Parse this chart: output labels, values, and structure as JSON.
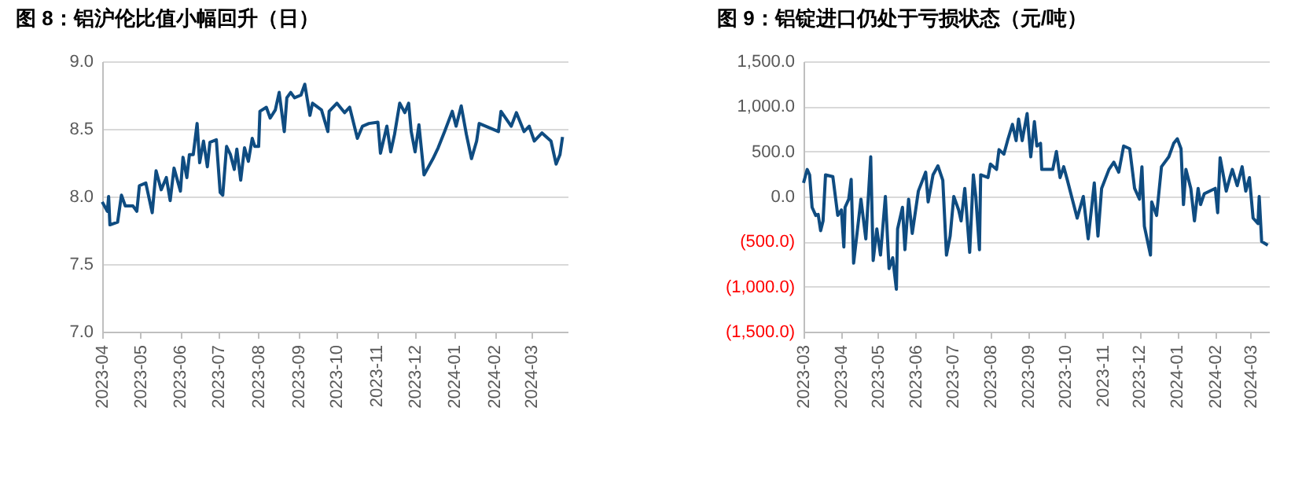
{
  "chart_data": [
    {
      "type": "line",
      "title": "图 8：铝沪伦比值小幅回升（日）",
      "x": [
        "2023-04-01",
        "2023-04-05",
        "2023-04-06",
        "2023-04-07",
        "2023-04-13",
        "2023-04-16",
        "2023-04-19",
        "2023-04-25",
        "2023-04-28",
        "2023-04-30",
        "2023-05-05",
        "2023-05-10",
        "2023-05-13",
        "2023-05-17",
        "2023-05-21",
        "2023-05-24",
        "2023-05-27",
        "2023-06-01",
        "2023-06-03",
        "2023-06-06",
        "2023-06-08",
        "2023-06-11",
        "2023-06-14",
        "2023-06-16",
        "2023-06-19",
        "2023-06-22",
        "2023-06-24",
        "2023-06-29",
        "2023-07-02",
        "2023-07-04",
        "2023-07-07",
        "2023-07-10",
        "2023-07-13",
        "2023-07-15",
        "2023-07-18",
        "2023-07-21",
        "2023-07-24",
        "2023-07-27",
        "2023-07-29",
        "2023-08-01",
        "2023-08-02",
        "2023-08-07",
        "2023-08-10",
        "2023-08-14",
        "2023-08-17",
        "2023-08-21",
        "2023-08-23",
        "2023-08-26",
        "2023-08-29",
        "2023-09-03",
        "2023-09-06",
        "2023-09-10",
        "2023-09-12",
        "2023-09-19",
        "2023-09-24",
        "2023-09-25",
        "2023-10-01",
        "2023-10-07",
        "2023-10-11",
        "2023-10-17",
        "2023-10-21",
        "2023-10-26",
        "2023-11-02",
        "2023-11-04",
        "2023-11-09",
        "2023-11-12",
        "2023-11-15",
        "2023-11-19",
        "2023-11-23",
        "2023-11-26",
        "2023-11-28",
        "2023-12-01",
        "2023-12-04",
        "2023-12-08",
        "2023-12-15",
        "2023-12-19",
        "2023-12-24",
        "2023-12-30",
        "2024-01-02",
        "2024-01-06",
        "2024-01-10",
        "2024-01-14",
        "2024-01-18",
        "2024-01-20",
        "2024-02-04",
        "2024-02-06",
        "2024-02-14",
        "2024-02-18",
        "2024-02-24",
        "2024-02-28",
        "2024-03-03",
        "2024-03-09",
        "2024-03-16",
        "2024-03-20",
        "2024-03-23",
        "2024-03-25"
      ],
      "series": [
        {
          "color": "#0f4c81",
          "values": [
            7.96,
            7.89,
            8.0,
            7.79,
            7.81,
            8.01,
            7.93,
            7.93,
            7.89,
            8.08,
            8.1,
            7.88,
            8.19,
            8.05,
            8.14,
            7.97,
            8.21,
            8.04,
            8.29,
            8.14,
            8.31,
            8.31,
            8.54,
            8.25,
            8.41,
            8.22,
            8.4,
            8.42,
            8.03,
            8.01,
            8.37,
            8.31,
            8.2,
            8.35,
            8.12,
            8.36,
            8.26,
            8.43,
            8.37,
            8.37,
            8.63,
            8.66,
            8.58,
            8.64,
            8.77,
            8.48,
            8.73,
            8.77,
            8.73,
            8.75,
            8.83,
            8.6,
            8.69,
            8.64,
            8.48,
            8.63,
            8.69,
            8.62,
            8.66,
            8.43,
            8.52,
            8.54,
            8.55,
            8.32,
            8.52,
            8.33,
            8.46,
            8.69,
            8.62,
            8.69,
            8.48,
            8.33,
            8.53,
            8.16,
            8.28,
            8.36,
            8.48,
            8.63,
            8.52,
            8.67,
            8.46,
            8.28,
            8.41,
            8.54,
            8.48,
            8.63,
            8.52,
            8.62,
            8.48,
            8.52,
            8.41,
            8.47,
            8.41,
            8.24,
            8.31,
            8.44
          ]
        }
      ],
      "xlim": [
        "2023-04-01",
        "2024-03-29"
      ],
      "xticks": [
        {
          "value": "2023-04",
          "label": "2023-04"
        },
        {
          "value": "2023-05",
          "label": "2023-05"
        },
        {
          "value": "2023-06",
          "label": "2023-06"
        },
        {
          "value": "2023-07",
          "label": "2023-07"
        },
        {
          "value": "2023-08",
          "label": "2023-08"
        },
        {
          "value": "2023-09",
          "label": "2023-09"
        },
        {
          "value": "2023-10",
          "label": "2023-10"
        },
        {
          "value": "2023-11",
          "label": "2023-11"
        },
        {
          "value": "2023-12",
          "label": "2023-12"
        },
        {
          "value": "2024-01",
          "label": "2024-01"
        },
        {
          "value": "2024-02",
          "label": "2024-02"
        },
        {
          "value": "2024-03",
          "label": "2024-03"
        }
      ],
      "ylim": [
        7,
        9
      ],
      "yticks": [
        {
          "value": 7,
          "label": "7.0"
        },
        {
          "value": 7.5,
          "label": "7.5"
        },
        {
          "value": 8,
          "label": "8.0"
        },
        {
          "value": 8.5,
          "label": "8.5"
        },
        {
          "value": 9,
          "label": "9.0"
        }
      ],
      "grid": "y"
    },
    {
      "type": "line",
      "title": "图 9：铝锭进口仍处于亏损状态（元/吨）",
      "x": [
        "2023-03-01",
        "2023-03-04",
        "2023-03-06",
        "2023-03-08",
        "2023-03-11",
        "2023-03-13",
        "2023-03-15",
        "2023-03-17",
        "2023-03-19",
        "2023-03-25",
        "2023-03-29",
        "2023-04-01",
        "2023-04-03",
        "2023-04-04",
        "2023-04-07",
        "2023-04-09",
        "2023-04-11",
        "2023-04-17",
        "2023-04-21",
        "2023-04-25",
        "2023-04-27",
        "2023-04-30",
        "2023-05-03",
        "2023-05-07",
        "2023-05-10",
        "2023-05-13",
        "2023-05-16",
        "2023-05-17",
        "2023-05-21",
        "2023-05-23",
        "2023-05-26",
        "2023-05-29",
        "2023-06-03",
        "2023-06-09",
        "2023-06-11",
        "2023-06-15",
        "2023-06-19",
        "2023-06-23",
        "2023-06-26",
        "2023-06-29",
        "2023-07-02",
        "2023-07-06",
        "2023-07-08",
        "2023-07-11",
        "2023-07-15",
        "2023-07-18",
        "2023-07-20",
        "2023-07-23",
        "2023-07-24",
        "2023-07-30",
        "2023-08-01",
        "2023-08-06",
        "2023-08-08",
        "2023-08-12",
        "2023-08-15",
        "2023-08-19",
        "2023-08-22",
        "2023-08-24",
        "2023-08-27",
        "2023-08-31",
        "2023-09-03",
        "2023-09-06",
        "2023-09-08",
        "2023-09-11",
        "2023-09-12",
        "2023-09-21",
        "2023-09-24",
        "2023-09-27",
        "2023-09-30",
        "2023-10-03",
        "2023-10-07",
        "2023-10-11",
        "2023-10-16",
        "2023-10-20",
        "2023-10-25",
        "2023-10-28",
        "2023-10-31",
        "2023-11-06",
        "2023-11-10",
        "2023-11-14",
        "2023-11-18",
        "2023-11-23",
        "2023-11-27",
        "2023-12-01",
        "2023-12-03",
        "2023-12-05",
        "2023-12-10",
        "2023-12-11",
        "2023-12-15",
        "2023-12-19",
        "2023-12-25",
        "2023-12-29",
        "2024-01-01",
        "2024-01-04",
        "2024-01-06",
        "2024-01-08",
        "2024-01-12",
        "2024-01-15",
        "2024-01-18",
        "2024-01-20",
        "2024-01-23",
        "2024-02-01",
        "2024-02-03",
        "2024-02-05",
        "2024-02-10",
        "2024-02-13",
        "2024-02-15",
        "2024-02-19",
        "2024-02-23",
        "2024-02-26",
        "2024-02-29",
        "2024-03-03",
        "2024-03-07",
        "2024-03-08",
        "2024-03-10",
        "2024-03-15"
      ],
      "series": [
        {
          "color": "#0f4c81",
          "values": [
            150,
            300,
            240,
            -120,
            -210,
            -200,
            -380,
            -270,
            240,
            220,
            -210,
            -150,
            -560,
            -120,
            -30,
            190,
            -740,
            -30,
            -470,
            440,
            -710,
            -360,
            -650,
            0,
            -800,
            -680,
            -1030,
            -360,
            -120,
            -590,
            -30,
            -410,
            60,
            270,
            -60,
            240,
            340,
            180,
            -650,
            -440,
            0,
            -150,
            -270,
            90,
            -620,
            240,
            0,
            -590,
            240,
            210,
            360,
            300,
            520,
            470,
            620,
            800,
            620,
            860,
            620,
            920,
            440,
            830,
            560,
            590,
            300,
            300,
            500,
            210,
            330,
            180,
            -30,
            -240,
            0,
            -470,
            150,
            -440,
            90,
            300,
            380,
            270,
            560,
            530,
            90,
            -30,
            330,
            -330,
            -650,
            -60,
            -210,
            330,
            440,
            590,
            640,
            530,
            -90,
            300,
            90,
            -270,
            90,
            -90,
            30,
            90,
            -180,
            430,
            60,
            210,
            300,
            120,
            330,
            60,
            210,
            -240,
            -300,
            0,
            -500,
            -540
          ]
        }
      ],
      "xlim": [
        "2023-03-01",
        "2024-03-16"
      ],
      "xticks": [
        {
          "value": "2023-03",
          "label": "2023-03"
        },
        {
          "value": "2023-04",
          "label": "2023-04"
        },
        {
          "value": "2023-05",
          "label": "2023-05"
        },
        {
          "value": "2023-06",
          "label": "2023-06"
        },
        {
          "value": "2023-07",
          "label": "2023-07"
        },
        {
          "value": "2023-08",
          "label": "2023-08"
        },
        {
          "value": "2023-09",
          "label": "2023-09"
        },
        {
          "value": "2023-10",
          "label": "2023-10"
        },
        {
          "value": "2023-11",
          "label": "2023-11"
        },
        {
          "value": "2023-12",
          "label": "2023-12"
        },
        {
          "value": "2024-01",
          "label": "2024-01"
        },
        {
          "value": "2024-02",
          "label": "2024-02"
        },
        {
          "value": "2024-03",
          "label": "2024-03"
        }
      ],
      "ylim": [
        -1500,
        1500
      ],
      "yticks": [
        {
          "value": -1500,
          "label": "(1,500.0)"
        },
        {
          "value": -1000,
          "label": "(1,000.0)"
        },
        {
          "value": -500,
          "label": "(500.0)"
        },
        {
          "value": 0,
          "label": "0.0"
        },
        {
          "value": 500,
          "label": "500.0"
        },
        {
          "value": 1000,
          "label": "1,000.0"
        },
        {
          "value": 1500,
          "label": "1,500.0"
        }
      ],
      "grid": "y"
    }
  ]
}
